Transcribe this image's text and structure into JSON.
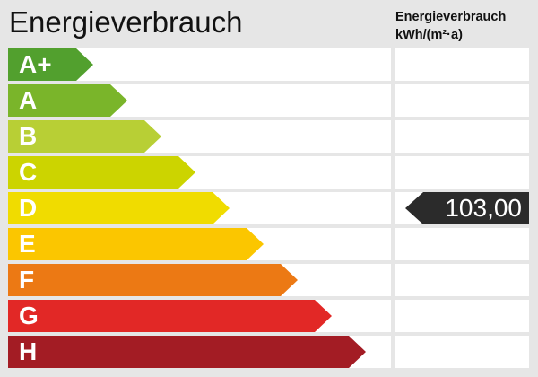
{
  "chart_data": {
    "type": "bar",
    "title": "Energieverbrauch",
    "unit_label": [
      "Energieverbrauch",
      "kWh/(m²·a)"
    ],
    "categories": [
      "A+",
      "A",
      "B",
      "C",
      "D",
      "E",
      "F",
      "G",
      "H"
    ],
    "colors": [
      "#52a02e",
      "#7ab52a",
      "#b8cf35",
      "#ccd400",
      "#f0dc00",
      "#fbc600",
      "#ec7914",
      "#e22826",
      "#a31c24"
    ],
    "value": "103,00",
    "value_class": "D",
    "marker_color": "#2b2b2b"
  }
}
